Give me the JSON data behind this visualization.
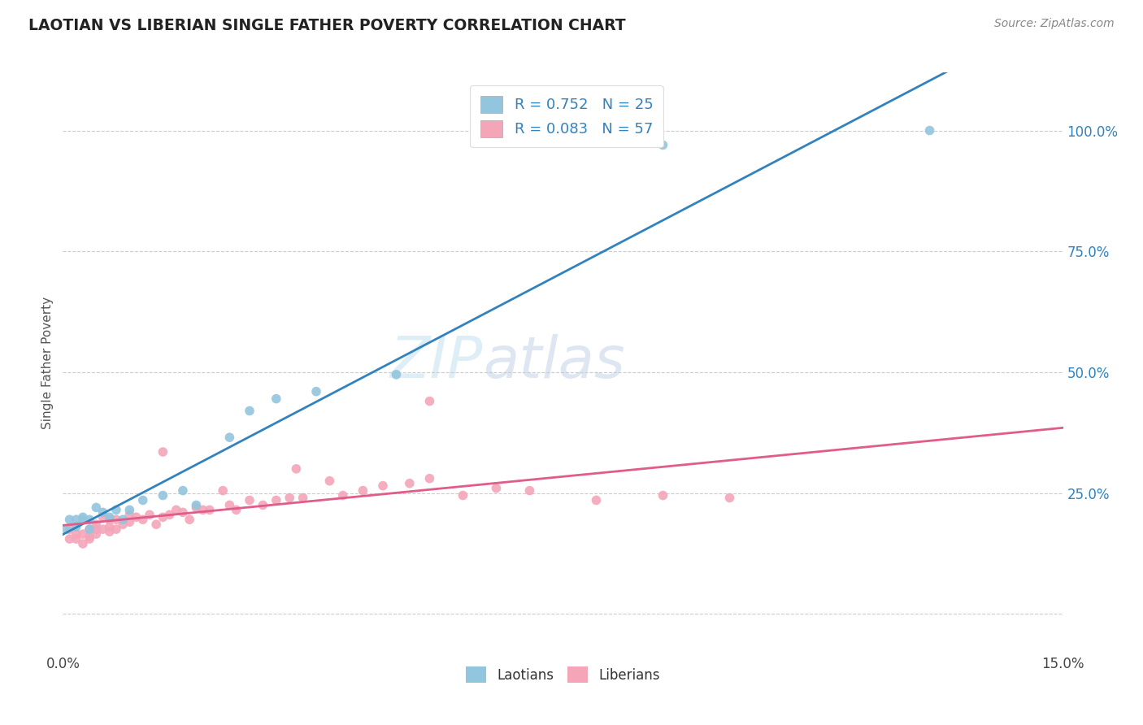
{
  "title": "LAOTIAN VS LIBERIAN SINGLE FATHER POVERTY CORRELATION CHART",
  "source": "Source: ZipAtlas.com",
  "ylabel": "Single Father Poverty",
  "xlim": [
    0.0,
    0.15
  ],
  "ylim": [
    -0.08,
    1.12
  ],
  "laotian_color": "#92c5de",
  "liberian_color": "#f4a5b8",
  "laotian_line_color": "#3182bd",
  "liberian_line_color": "#e05c8a",
  "laotian_R": 0.752,
  "laotian_N": 25,
  "liberian_R": 0.083,
  "liberian_N": 57,
  "background_color": "#ffffff",
  "laotian_scatter_x": [
    0.0005,
    0.001,
    0.002,
    0.002,
    0.003,
    0.003,
    0.004,
    0.004,
    0.005,
    0.006,
    0.007,
    0.008,
    0.009,
    0.01,
    0.012,
    0.015,
    0.018,
    0.02,
    0.025,
    0.028,
    0.032,
    0.038,
    0.05,
    0.09,
    0.13
  ],
  "laotian_scatter_y": [
    0.175,
    0.195,
    0.195,
    0.18,
    0.195,
    0.2,
    0.175,
    0.195,
    0.22,
    0.21,
    0.2,
    0.215,
    0.195,
    0.215,
    0.235,
    0.245,
    0.255,
    0.225,
    0.365,
    0.42,
    0.445,
    0.46,
    0.495,
    0.97,
    1.0
  ],
  "liberian_scatter_x": [
    0.001,
    0.001,
    0.002,
    0.002,
    0.003,
    0.003,
    0.004,
    0.004,
    0.004,
    0.005,
    0.005,
    0.005,
    0.006,
    0.006,
    0.007,
    0.007,
    0.007,
    0.008,
    0.008,
    0.009,
    0.01,
    0.01,
    0.011,
    0.012,
    0.013,
    0.014,
    0.015,
    0.016,
    0.017,
    0.018,
    0.019,
    0.02,
    0.021,
    0.022,
    0.024,
    0.025,
    0.026,
    0.028,
    0.03,
    0.032,
    0.034,
    0.036,
    0.04,
    0.042,
    0.045,
    0.048,
    0.052,
    0.055,
    0.06,
    0.065,
    0.07,
    0.08,
    0.09,
    0.1,
    0.055,
    0.035,
    0.015
  ],
  "liberian_scatter_y": [
    0.175,
    0.155,
    0.155,
    0.165,
    0.165,
    0.145,
    0.175,
    0.16,
    0.155,
    0.165,
    0.175,
    0.185,
    0.2,
    0.175,
    0.17,
    0.195,
    0.18,
    0.195,
    0.175,
    0.185,
    0.205,
    0.19,
    0.2,
    0.195,
    0.205,
    0.185,
    0.2,
    0.205,
    0.215,
    0.21,
    0.195,
    0.22,
    0.215,
    0.215,
    0.255,
    0.225,
    0.215,
    0.235,
    0.225,
    0.235,
    0.24,
    0.24,
    0.275,
    0.245,
    0.255,
    0.265,
    0.27,
    0.28,
    0.245,
    0.26,
    0.255,
    0.235,
    0.245,
    0.24,
    0.44,
    0.3,
    0.335
  ]
}
